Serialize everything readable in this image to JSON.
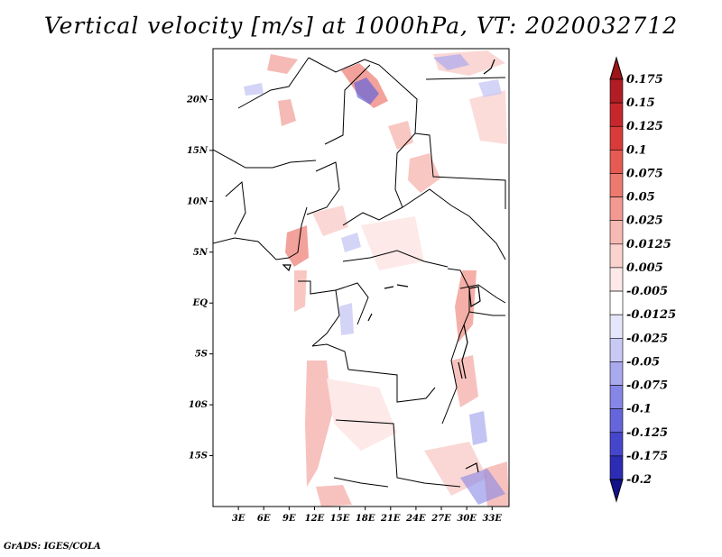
{
  "title": "Vertical velocity [m/s] at 1000hPa, VT: 2020032712",
  "footer": "GrADS: IGES/COLA",
  "map": {
    "lon_range": [
      0,
      35
    ],
    "lat_range": [
      -20,
      25
    ],
    "lat_ticks": [
      {
        "value": 20,
        "label": "20N"
      },
      {
        "value": 15,
        "label": "15N"
      },
      {
        "value": 10,
        "label": "10N"
      },
      {
        "value": 5,
        "label": "5N"
      },
      {
        "value": 0,
        "label": "EQ"
      },
      {
        "value": -5,
        "label": "5S"
      },
      {
        "value": -10,
        "label": "10S"
      },
      {
        "value": -15,
        "label": "15S"
      }
    ],
    "lon_ticks": [
      {
        "value": 3,
        "label": "3E"
      },
      {
        "value": 6,
        "label": "6E"
      },
      {
        "value": 9,
        "label": "9E"
      },
      {
        "value": 12,
        "label": "12E"
      },
      {
        "value": 15,
        "label": "15E"
      },
      {
        "value": 18,
        "label": "18E"
      },
      {
        "value": 21,
        "label": "21E"
      },
      {
        "value": 24,
        "label": "24E"
      },
      {
        "value": 27,
        "label": "27E"
      },
      {
        "value": 30,
        "label": "30E"
      },
      {
        "value": 33,
        "label": "33E"
      }
    ]
  },
  "colorbar": {
    "levels": [
      {
        "label": "0.175",
        "color": "#b11d24"
      },
      {
        "label": "0.15",
        "color": "#c6272c"
      },
      {
        "label": "0.125",
        "color": "#d83b39"
      },
      {
        "label": "0.1",
        "color": "#e55a52"
      },
      {
        "label": "0.075",
        "color": "#ec7a70"
      },
      {
        "label": "0.05",
        "color": "#f29a92"
      },
      {
        "label": "0.025",
        "color": "#f7b9b3"
      },
      {
        "label": "0.0125",
        "color": "#fad3cf"
      },
      {
        "label": "0.005",
        "color": "#fde9e7"
      },
      {
        "label": "-0.005",
        "color": "#ffffff"
      },
      {
        "label": "-0.0125",
        "color": "#e6e6fb"
      },
      {
        "label": "-0.025",
        "color": "#c9c9f5"
      },
      {
        "label": "-0.05",
        "color": "#a9a9ef"
      },
      {
        "label": "-0.075",
        "color": "#8686e6"
      },
      {
        "label": "-0.1",
        "color": "#6565dc"
      },
      {
        "label": "-0.125",
        "color": "#4646cc"
      },
      {
        "label": "-0.175",
        "color": "#2c2cb4"
      },
      {
        "label": "-0.2",
        "color": "#1c1c9a"
      }
    ],
    "top_color": "#9b1519",
    "bottom_color": "#12128a"
  }
}
